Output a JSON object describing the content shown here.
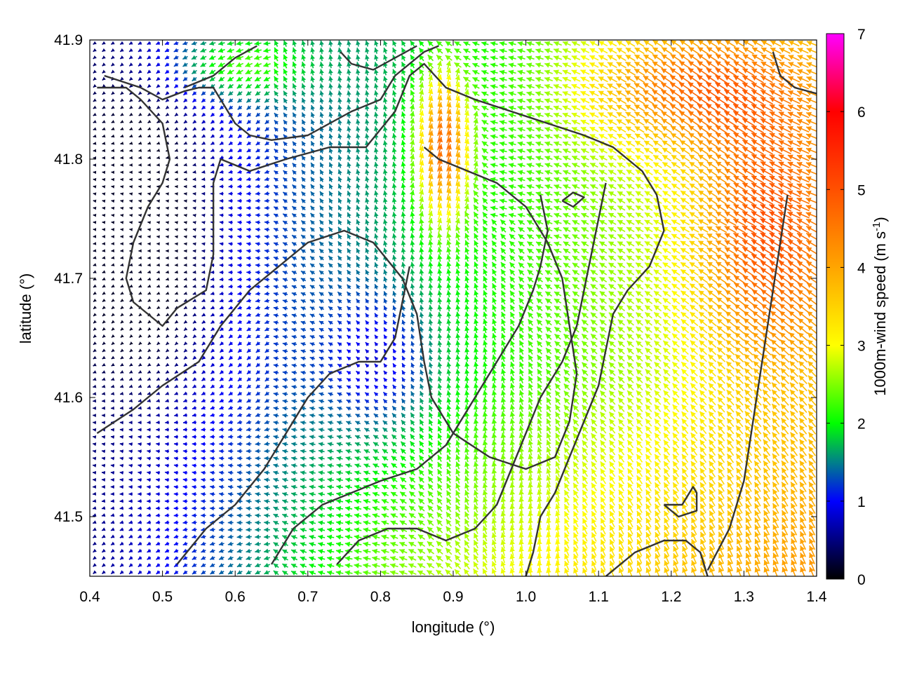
{
  "chart_data": {
    "type": "vector-field",
    "xlabel": "longitude (°)",
    "ylabel": "latitude (°)",
    "xlim": [
      0.4,
      1.4
    ],
    "ylim": [
      41.45,
      41.9
    ],
    "xticks": [
      0.4,
      0.5,
      0.6,
      0.7,
      0.8,
      0.9,
      1.0,
      1.1,
      1.2,
      1.3,
      1.4
    ],
    "xtick_labels": [
      "0.4",
      "0.5",
      "0.6",
      "0.7",
      "0.8",
      "0.9",
      "1.0",
      "1.1",
      "1.2",
      "1.3",
      "1.4"
    ],
    "yticks": [
      41.5,
      41.6,
      41.7,
      41.8,
      41.9
    ],
    "ytick_labels": [
      "41.5",
      "41.6",
      "41.7",
      "41.8",
      "41.9"
    ],
    "grid": false,
    "colorbar": {
      "label_main": "1000m-wind speed (m s",
      "label_sup": "-1",
      "label_end": ")",
      "range": [
        0,
        7
      ],
      "ticks": [
        0,
        1,
        2,
        3,
        4,
        5,
        6,
        7
      ],
      "tick_labels": [
        "0",
        "1",
        "2",
        "3",
        "4",
        "5",
        "6",
        "7"
      ],
      "colors": [
        {
          "value": 0,
          "color": "#000000"
        },
        {
          "value": 1,
          "color": "#0000ff"
        },
        {
          "value": 1.5,
          "color": "#00808a"
        },
        {
          "value": 2,
          "color": "#00ff00"
        },
        {
          "value": 3,
          "color": "#ffff00"
        },
        {
          "value": 4,
          "color": "#ffa500"
        },
        {
          "value": 5,
          "color": "#ff5000"
        },
        {
          "value": 6,
          "color": "#ff0000"
        },
        {
          "value": 7,
          "color": "#ff00ff"
        }
      ]
    },
    "contours": [
      [
        [
          0.42,
          41.87
        ],
        [
          0.47,
          41.86
        ],
        [
          0.5,
          41.85
        ],
        [
          0.53,
          41.857
        ],
        [
          0.55,
          41.86
        ],
        [
          0.57,
          41.86
        ],
        [
          0.58,
          41.85
        ],
        [
          0.6,
          41.83
        ],
        [
          0.62,
          41.82
        ],
        [
          0.65,
          41.816
        ],
        [
          0.7,
          41.82
        ],
        [
          0.73,
          41.83
        ],
        [
          0.76,
          41.84
        ],
        [
          0.8,
          41.85
        ],
        [
          0.82,
          41.87
        ],
        [
          0.84,
          41.88
        ],
        [
          0.86,
          41.89
        ],
        [
          0.88,
          41.895
        ]
      ],
      [
        [
          0.41,
          41.86
        ],
        [
          0.45,
          41.86
        ],
        [
          0.47,
          41.85
        ],
        [
          0.5,
          41.83
        ],
        [
          0.51,
          41.8
        ],
        [
          0.5,
          41.78
        ],
        [
          0.48,
          41.76
        ],
        [
          0.46,
          41.73
        ],
        [
          0.45,
          41.7
        ],
        [
          0.46,
          41.68
        ],
        [
          0.5,
          41.66
        ],
        [
          0.52,
          41.675
        ],
        [
          0.56,
          41.69
        ],
        [
          0.57,
          41.72
        ],
        [
          0.57,
          41.78
        ],
        [
          0.58,
          41.8
        ]
      ],
      [
        [
          0.58,
          41.8
        ],
        [
          0.62,
          41.79
        ],
        [
          0.67,
          41.8
        ],
        [
          0.73,
          41.81
        ],
        [
          0.78,
          41.81
        ],
        [
          0.82,
          41.84
        ],
        [
          0.84,
          41.87
        ],
        [
          0.86,
          41.88
        ],
        [
          0.89,
          41.86
        ],
        [
          0.93,
          41.85
        ],
        [
          0.98,
          41.84
        ],
        [
          1.03,
          41.83
        ],
        [
          1.08,
          41.82
        ],
        [
          1.12,
          41.81
        ],
        [
          1.16,
          41.79
        ],
        [
          1.18,
          41.77
        ],
        [
          1.19,
          41.74
        ],
        [
          1.17,
          41.71
        ],
        [
          1.14,
          41.69
        ],
        [
          1.12,
          41.67
        ],
        [
          1.11,
          41.64
        ],
        [
          1.1,
          41.61
        ],
        [
          1.08,
          41.58
        ],
        [
          1.06,
          41.55
        ],
        [
          1.04,
          41.52
        ],
        [
          1.02,
          41.5
        ],
        [
          1.01,
          41.47
        ],
        [
          1.0,
          41.45
        ]
      ],
      [
        [
          0.41,
          41.57
        ],
        [
          0.46,
          41.59
        ],
        [
          0.5,
          41.61
        ],
        [
          0.55,
          41.63
        ],
        [
          0.58,
          41.66
        ],
        [
          0.62,
          41.69
        ],
        [
          0.66,
          41.71
        ],
        [
          0.7,
          41.73
        ],
        [
          0.75,
          41.74
        ],
        [
          0.79,
          41.73
        ],
        [
          0.83,
          41.7
        ],
        [
          0.85,
          41.67
        ],
        [
          0.86,
          41.63
        ],
        [
          0.87,
          41.6
        ],
        [
          0.9,
          41.57
        ],
        [
          0.95,
          41.55
        ],
        [
          1.0,
          41.54
        ],
        [
          1.04,
          41.55
        ],
        [
          1.06,
          41.58
        ],
        [
          1.07,
          41.62
        ],
        [
          1.06,
          41.66
        ],
        [
          1.05,
          41.7
        ],
        [
          1.03,
          41.73
        ],
        [
          1.0,
          41.76
        ],
        [
          0.96,
          41.78
        ],
        [
          0.92,
          41.79
        ],
        [
          0.88,
          41.8
        ],
        [
          0.86,
          41.81
        ]
      ],
      [
        [
          0.52,
          41.46
        ],
        [
          0.56,
          41.49
        ],
        [
          0.6,
          41.51
        ],
        [
          0.64,
          41.54
        ],
        [
          0.67,
          41.57
        ],
        [
          0.7,
          41.6
        ],
        [
          0.73,
          41.62
        ],
        [
          0.77,
          41.63
        ],
        [
          0.8,
          41.63
        ],
        [
          0.82,
          41.65
        ],
        [
          0.83,
          41.68
        ],
        [
          0.84,
          41.71
        ]
      ],
      [
        [
          0.65,
          41.46
        ],
        [
          0.68,
          41.49
        ],
        [
          0.72,
          41.51
        ],
        [
          0.76,
          41.52
        ],
        [
          0.8,
          41.53
        ],
        [
          0.85,
          41.54
        ],
        [
          0.89,
          41.56
        ],
        [
          0.93,
          41.6
        ],
        [
          0.96,
          41.63
        ],
        [
          0.99,
          41.66
        ],
        [
          1.01,
          41.69
        ],
        [
          1.02,
          41.71
        ],
        [
          1.03,
          41.74
        ],
        [
          1.02,
          41.77
        ]
      ],
      [
        [
          0.74,
          41.46
        ],
        [
          0.77,
          41.48
        ],
        [
          0.81,
          41.49
        ],
        [
          0.85,
          41.49
        ],
        [
          0.89,
          41.48
        ],
        [
          0.93,
          41.49
        ],
        [
          0.96,
          41.51
        ],
        [
          0.98,
          41.54
        ],
        [
          1.0,
          41.57
        ],
        [
          1.02,
          41.6
        ],
        [
          1.05,
          41.63
        ],
        [
          1.07,
          41.66
        ],
        [
          1.08,
          41.69
        ],
        [
          1.09,
          41.72
        ],
        [
          1.1,
          41.75
        ],
        [
          1.11,
          41.78
        ]
      ],
      [
        [
          1.11,
          41.45
        ],
        [
          1.15,
          41.47
        ],
        [
          1.19,
          41.48
        ],
        [
          1.22,
          41.48
        ],
        [
          1.24,
          41.47
        ],
        [
          1.25,
          41.45
        ]
      ],
      [
        [
          1.25,
          41.455
        ],
        [
          1.28,
          41.49
        ],
        [
          1.3,
          41.53
        ],
        [
          1.31,
          41.57
        ],
        [
          1.32,
          41.61
        ],
        [
          1.33,
          41.65
        ],
        [
          1.34,
          41.69
        ],
        [
          1.35,
          41.73
        ],
        [
          1.36,
          41.77
        ]
      ],
      [
        [
          1.19,
          41.51
        ],
        [
          1.215,
          41.51
        ],
        [
          1.23,
          41.525
        ],
        [
          1.235,
          41.52
        ],
        [
          1.235,
          41.505
        ],
        [
          1.21,
          41.5
        ],
        [
          1.19,
          41.51
        ]
      ],
      [
        [
          0.53,
          41.86
        ],
        [
          0.57,
          41.87
        ],
        [
          0.6,
          41.885
        ],
        [
          0.63,
          41.895
        ]
      ],
      [
        [
          0.745,
          41.89
        ],
        [
          0.76,
          41.88
        ],
        [
          0.79,
          41.875
        ],
        [
          0.82,
          41.885
        ],
        [
          0.85,
          41.895
        ]
      ],
      [
        [
          1.34,
          41.89
        ],
        [
          1.35,
          41.87
        ],
        [
          1.37,
          41.86
        ],
        [
          1.4,
          41.855
        ]
      ],
      [
        [
          1.05,
          41.765
        ],
        [
          1.065,
          41.772
        ],
        [
          1.08,
          41.768
        ],
        [
          1.065,
          41.76
        ],
        [
          1.05,
          41.765
        ]
      ]
    ]
  }
}
